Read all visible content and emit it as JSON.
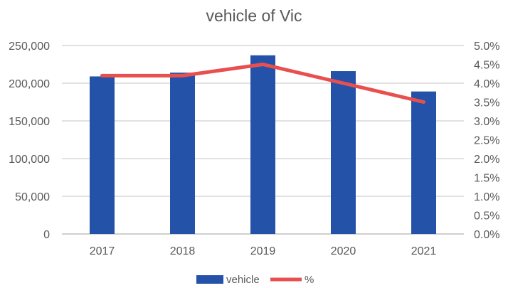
{
  "chart_data": {
    "type": "bar+line",
    "title": "vehicle of Vic",
    "categories": [
      "2017",
      "2018",
      "2019",
      "2020",
      "2021"
    ],
    "series": [
      {
        "name": "vehicle",
        "type": "bar",
        "axis": "left",
        "color": "#2452A8",
        "values": [
          209000,
          214000,
          237000,
          216000,
          189000
        ]
      },
      {
        "name": "%",
        "type": "line",
        "axis": "right",
        "color": "#E8504F",
        "values": [
          4.2,
          4.2,
          4.5,
          4.0,
          3.5
        ]
      }
    ],
    "left_axis": {
      "ylim": [
        0,
        250000
      ],
      "ticks": [
        "0",
        "50,000",
        "100,000",
        "150,000",
        "200,000",
        "250,000"
      ]
    },
    "right_axis": {
      "ylim": [
        0,
        5
      ],
      "ticks": [
        "0.0%",
        "0.5%",
        "1.0%",
        "1.5%",
        "2.0%",
        "2.5%",
        "3.0%",
        "3.5%",
        "4.0%",
        "4.5%",
        "5.0%"
      ]
    },
    "grid": true,
    "legend": "bottom"
  }
}
